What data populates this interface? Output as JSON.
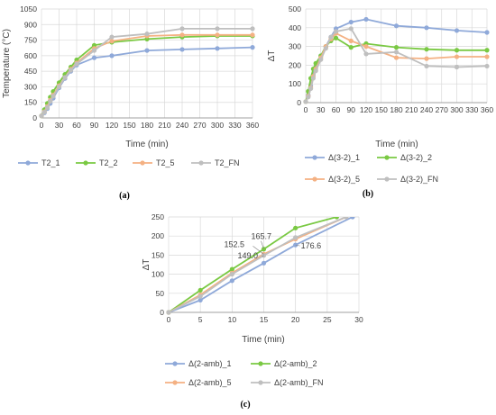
{
  "colors": {
    "blue": "#8fa9d9",
    "green": "#7ac943",
    "orange": "#f4b183",
    "gray": "#bfbfbf"
  },
  "chart_data": [
    {
      "id": "a",
      "type": "line",
      "panel_label": "(a)",
      "xlabel": "Time (min)",
      "ylabel": "Temperature (°C)",
      "xlim": [
        0,
        360
      ],
      "ylim": [
        0,
        1050
      ],
      "xticks": [
        "0",
        "30",
        "60",
        "90",
        "120",
        "150",
        "180",
        "210",
        "240",
        "270",
        "300",
        "330",
        "360"
      ],
      "yticks": [
        "0",
        "150",
        "300",
        "450",
        "600",
        "750",
        "900",
        "1050"
      ],
      "legend_position": "bottom",
      "grid": true,
      "series": [
        {
          "name": "T2_1",
          "color": "blue",
          "x": [
            0,
            5,
            10,
            15,
            20,
            30,
            40,
            50,
            60,
            90,
            120,
            180,
            240,
            300,
            360
          ],
          "y": [
            20,
            50,
            90,
            140,
            190,
            290,
            380,
            450,
            510,
            580,
            600,
            650,
            660,
            670,
            680
          ]
        },
        {
          "name": "T2_2",
          "color": "green",
          "x": [
            0,
            5,
            10,
            15,
            20,
            30,
            40,
            50,
            60,
            90,
            120,
            180,
            240,
            300,
            360
          ],
          "y": [
            20,
            80,
            140,
            200,
            255,
            340,
            420,
            490,
            560,
            700,
            730,
            760,
            780,
            790,
            790
          ]
        },
        {
          "name": "T2_5",
          "color": "orange",
          "x": [
            0,
            5,
            10,
            15,
            20,
            30,
            40,
            50,
            60,
            90,
            120,
            180,
            240,
            300,
            360
          ],
          "y": [
            20,
            60,
            110,
            170,
            220,
            310,
            390,
            470,
            530,
            670,
            740,
            790,
            800,
            800,
            800
          ]
        },
        {
          "name": "T2_FN",
          "color": "gray",
          "x": [
            0,
            5,
            10,
            15,
            20,
            30,
            40,
            50,
            60,
            90,
            120,
            180,
            240,
            300,
            360
          ],
          "y": [
            20,
            55,
            100,
            160,
            210,
            300,
            390,
            460,
            520,
            650,
            780,
            810,
            860,
            860,
            860
          ]
        }
      ]
    },
    {
      "id": "b",
      "type": "line",
      "panel_label": "(b)",
      "xlabel": "Time (min)",
      "ylabel": "ΔT",
      "xlim": [
        0,
        360
      ],
      "ylim": [
        0,
        500
      ],
      "xticks": [
        "0",
        "30",
        "60",
        "90",
        "120",
        "150",
        "180",
        "210",
        "240",
        "270",
        "300",
        "330",
        "360"
      ],
      "yticks": [
        "0",
        "100",
        "200",
        "300",
        "400",
        "500"
      ],
      "legend_position": "bottom",
      "grid": true,
      "series": [
        {
          "name": "Δ(3-2)_1",
          "color": "blue",
          "x": [
            0,
            5,
            10,
            15,
            20,
            30,
            40,
            50,
            60,
            90,
            120,
            180,
            240,
            300,
            360
          ],
          "y": [
            5,
            40,
            90,
            150,
            190,
            250,
            300,
            350,
            395,
            430,
            445,
            410,
            400,
            385,
            375
          ]
        },
        {
          "name": "Δ(3-2)_2",
          "color": "green",
          "x": [
            0,
            5,
            10,
            15,
            20,
            30,
            40,
            50,
            60,
            90,
            120,
            180,
            240,
            300,
            360
          ],
          "y": [
            5,
            60,
            130,
            180,
            210,
            250,
            300,
            330,
            345,
            295,
            315,
            295,
            285,
            280,
            280
          ]
        },
        {
          "name": "Δ(3-2)_5",
          "color": "orange",
          "x": [
            0,
            5,
            10,
            15,
            20,
            30,
            40,
            50,
            60,
            90,
            120,
            180,
            240,
            300,
            360
          ],
          "y": [
            5,
            35,
            80,
            140,
            180,
            240,
            300,
            340,
            370,
            330,
            300,
            240,
            235,
            245,
            245
          ]
        },
        {
          "name": "Δ(3-2)_FN",
          "color": "gray",
          "x": [
            0,
            5,
            10,
            15,
            20,
            30,
            40,
            50,
            60,
            90,
            120,
            180,
            240,
            300,
            360
          ],
          "y": [
            5,
            30,
            75,
            130,
            170,
            230,
            290,
            350,
            380,
            395,
            260,
            270,
            195,
            190,
            195
          ]
        }
      ]
    },
    {
      "id": "c",
      "type": "line",
      "panel_label": "(c)",
      "xlabel": "Time (min)",
      "ylabel": "ΔT",
      "xlim": [
        0,
        30
      ],
      "ylim": [
        0,
        250
      ],
      "xticks": [
        "0",
        "5",
        "10",
        "15",
        "20",
        "25",
        "30"
      ],
      "yticks": [
        "0",
        "50",
        "100",
        "150",
        "200",
        "250"
      ],
      "legend_position": "bottom",
      "grid": true,
      "annotations": [
        "165.7",
        "152.5",
        "149.0",
        "176.6"
      ],
      "series": [
        {
          "name": "Δ(2-amb)_1",
          "color": "blue",
          "x": [
            0,
            5,
            10,
            15,
            20,
            29
          ],
          "y": [
            0,
            32,
            83,
            129,
            176.6,
            250
          ]
        },
        {
          "name": "Δ(2-amb)_2",
          "color": "green",
          "x": [
            0,
            5,
            10,
            15,
            20,
            26.5
          ],
          "y": [
            0,
            58,
            113,
            165.7,
            221,
            250
          ]
        },
        {
          "name": "Δ(2-amb)_5",
          "color": "orange",
          "x": [
            0,
            5,
            10,
            15,
            20,
            28
          ],
          "y": [
            0,
            46,
            103,
            152.5,
            192,
            250
          ]
        },
        {
          "name": "Δ(2-amb)_FN",
          "color": "gray",
          "x": [
            0,
            5,
            10,
            15,
            20,
            28
          ],
          "y": [
            0,
            42,
            100,
            149.0,
            196,
            250
          ]
        }
      ]
    }
  ]
}
